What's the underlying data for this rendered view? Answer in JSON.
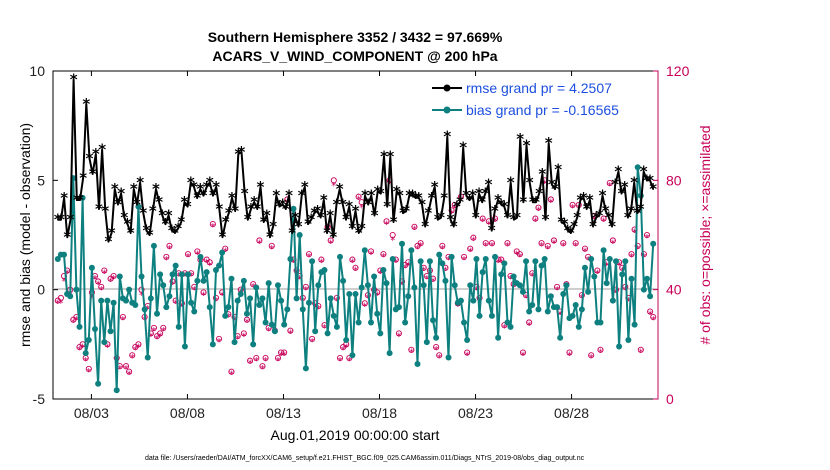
{
  "chart_data": {
    "type": "line",
    "title": "Southern Hemisphere 3352 / 3432 = 97.669%",
    "subtitle": "ACARS_V_WIND_COMPONENT @ 200 hPa",
    "xlabel": "Aug.01,2019 00:00:00 start",
    "ylabel": "rmse and bias (model - observation)",
    "ylabel_right": "# of obs: o=possible; ×=assimilated",
    "ylim": [
      -5,
      10
    ],
    "ylim_right": [
      0,
      120
    ],
    "xlim": [
      0,
      31.5
    ],
    "x_ticks": [
      {
        "x": 2,
        "label": "08/03"
      },
      {
        "x": 7,
        "label": "08/08"
      },
      {
        "x": 12,
        "label": "08/13"
      },
      {
        "x": 17,
        "label": "08/18"
      },
      {
        "x": 22,
        "label": "08/23"
      },
      {
        "x": 27,
        "label": "08/28"
      }
    ],
    "y_ticks": [
      -5,
      0,
      5,
      10
    ],
    "y_ticks_right": [
      0,
      40,
      80,
      120
    ],
    "footnote": "data file: /Users/raeder/DAI/ATM_forcXX/CAM6_setup/f.e21.FHIST_BGC.f09_025.CAM6assim.011/Diags_NTrS_2019-08/obs_diag_output.nc",
    "colors": {
      "rmse": "#000000",
      "bias": "#0f8080",
      "obs": "#c8005a",
      "legend_text": "#1d4fe0"
    },
    "series": [
      {
        "name": "rmse grand pr = 4.2507",
        "values": [
          3.2,
          3.2,
          4.2,
          2.4,
          3.2,
          9.6,
          4.1,
          4.1,
          5.1,
          8.5,
          6.0,
          5.3,
          6.2,
          3.7,
          6.4,
          3.6,
          2.2,
          2.6,
          4.6,
          3.9,
          4.4,
          3.3,
          3.0,
          2.6,
          4.6,
          3.9,
          4.9,
          3.5,
          2.7,
          2.5,
          3.6,
          4.6,
          4.0,
          3.4,
          3.0,
          3.4,
          2.7,
          2.6,
          2.8,
          3.1,
          4.0,
          3.8,
          4.9,
          4.7,
          4.2,
          4.6,
          4.3,
          4.7,
          4.9,
          4.3,
          4.7,
          3.7,
          2.4,
          3.1,
          3.5,
          4.2,
          3.6,
          6.2,
          6.3,
          4.4,
          3.2,
          3.7,
          4.0,
          3.7,
          4.7,
          3.1,
          3.4,
          2.4,
          2.9,
          4.3,
          3.8,
          3.9,
          3.7,
          4.3,
          2.6,
          3.3,
          2.9,
          4.3,
          4.7,
          3.0,
          3.2,
          3.5,
          3.6,
          3.3,
          4.1,
          2.6,
          3.4,
          2.4,
          3.9,
          4.6,
          3.9,
          3.2,
          3.8,
          2.8,
          3.6,
          2.6,
          2.8,
          4.3,
          3.9,
          4.3,
          3.4,
          4.5,
          4.4,
          6.1,
          3.8,
          6.1,
          3.1,
          4.5,
          4.3,
          3.5,
          3.6,
          4.3,
          4.3,
          4.2,
          4.2,
          3.9,
          2.9,
          3.5,
          4.2,
          4.7,
          3.2,
          3.3,
          4.2,
          7.0,
          3.2,
          2.9,
          3.8,
          4.0,
          6.5,
          4.3,
          4.1,
          4.3,
          3.3,
          4.4,
          4.0,
          4.4,
          4.8,
          2.7,
          3.6,
          4.1,
          3.9,
          3.8,
          3.3,
          4.9,
          3.2,
          3.3,
          6.9,
          4.0,
          6.6,
          4.9,
          4.0,
          4.0,
          4.4,
          5.3,
          3.2,
          6.7,
          4.8,
          4.6,
          5.5,
          3.1,
          3.0,
          2.7,
          2.6,
          2.9,
          3.3,
          4.1,
          4.2,
          3.7,
          4.1,
          2.9,
          3.3,
          3.4,
          4.3,
          3.6,
          3.3,
          2.9,
          4.8,
          5.4,
          4.4,
          4.7,
          3.3,
          3.6,
          4.9,
          3.5,
          3.7,
          5.4,
          5.0,
          5.0,
          4.6
        ]
      },
      {
        "name": "bias grand pr = -0.16565",
        "values": [
          1.4,
          1.6,
          1.6,
          -0.2,
          -0.3,
          5.1,
          0.0,
          -1.7,
          4.2,
          -2.9,
          -2.3,
          1.0,
          -1.8,
          -4.3,
          -0.5,
          -2.4,
          -0.5,
          -1.9,
          -0.6,
          -4.6,
          0.6,
          -0.4,
          -0.5,
          0.0,
          -0.6,
          -0.7,
          3.8,
          0.6,
          -0.9,
          -3.1,
          -0.4,
          2.0,
          -1.1,
          0.7,
          0.2,
          -0.8,
          -0.3,
          0.7,
          1.1,
          -1.7,
          0.7,
          -2.6,
          0.7,
          -0.6,
          -1.0,
          0.4,
          1.5,
          0.4,
          0.8,
          -0.8,
          -2.5,
          0.9,
          1.1,
          1.7,
          -1.2,
          -0.8,
          0.5,
          -2.4,
          -0.5,
          -0.2,
          0.4,
          -1.1,
          -0.4,
          -2.5,
          0.1,
          -0.7,
          -0.4,
          -1.5,
          0.3,
          -1.6,
          -1.9,
          0.2,
          -0.5,
          -1.6,
          -0.9,
          1.4,
          3.7,
          -0.4,
          2.5,
          -0.9,
          -3.6,
          -0.6,
          1.3,
          -1.9,
          0.2,
          0.8,
          0.9,
          -2.0,
          -0.4,
          -1.2,
          -1.7,
          1.5,
          0.4,
          -2.3,
          -0.2,
          -3.0,
          -0.2,
          -1.5,
          0.1,
          1.8,
          0.2,
          -1.5,
          0.6,
          -1.1,
          -2.0,
          0.9,
          0.3,
          -2.9,
          1.4,
          -0.9,
          -0.8,
          2.1,
          -1.5,
          -0.3,
          1.8,
          0.1,
          -3.4,
          1.3,
          0.2,
          -2.4,
          1.3,
          -1.4,
          -2.2,
          1.6,
          1.2,
          0.4,
          -3.1,
          1.5,
          0.2,
          -0.6,
          -0.5,
          -1.5,
          -2.3,
          0.2,
          -0.5,
          1.4,
          -1.2,
          0.8,
          1.4,
          -0.5,
          -1.2,
          1.5,
          -2.2,
          0.7,
          1.2,
          -1.5,
          -1.7,
          0.6,
          0.3,
          0.2,
          -0.1,
          1.3,
          -1.0,
          -0.7,
          1.3,
          -0.9,
          1.1,
          1.4,
          -1.0,
          -0.3,
          -0.8,
          -0.8,
          -2.2,
          -0.2,
          0.2,
          -1.3,
          -1.2,
          -0.7,
          -1.7,
          -0.9,
          1.0,
          -0.1,
          1.4,
          0.6,
          -1.5,
          -1.5,
          1.8,
          0.3,
          1.4,
          -0.5,
          1.3,
          -2.6,
          0.7,
          1.3,
          -2.3,
          0.5,
          -1.6,
          5.6,
          4.3,
          0.0,
          0.5,
          -0.3,
          2.1
        ]
      }
    ],
    "obs_possible": [
      36,
      37,
      45,
      47,
      40,
      29,
      30,
      19,
      20,
      15,
      11,
      39,
      45,
      43,
      41,
      47,
      20,
      44,
      45,
      15,
      12,
      30,
      12,
      10,
      16,
      19,
      20,
      40,
      30,
      34,
      24,
      26,
      23,
      24,
      26,
      52,
      56,
      43,
      36,
      46,
      35,
      46,
      53,
      46,
      41,
      54,
      51,
      39,
      51,
      50,
      64,
      37,
      22,
      39,
      55,
      31,
      10,
      30,
      23,
      40,
      24,
      29,
      14,
      42,
      15,
      58,
      12,
      15,
      26,
      56,
      25,
      15,
      17,
      17,
      73,
      25,
      51,
      47,
      45,
      37,
      41,
      53,
      22,
      35,
      34,
      51,
      27,
      63,
      58,
      80,
      37,
      15,
      19,
      20,
      15,
      51,
      48,
      74,
      72,
      35,
      38,
      54,
      40,
      39,
      47,
      53,
      65,
      80,
      60,
      51,
      24,
      43,
      49,
      50,
      18,
      63,
      56,
      57,
      48,
      45,
      47,
      44,
      19,
      16,
      56,
      48,
      52,
      69,
      71,
      35,
      74,
      52,
      17,
      55,
      59,
      41,
      37,
      66,
      57,
      65,
      57,
      66,
      51,
      51,
      27,
      57,
      45,
      42,
      54,
      53,
      17,
      38,
      28,
      46,
      66,
      70,
      57,
      80,
      56,
      73,
      58,
      41,
      32,
      57,
      42,
      17,
      71,
      57,
      71,
      38,
      55,
      52,
      16,
      67,
      47,
      18,
      66,
      50,
      79,
      58,
      40,
      50,
      48,
      41,
      37,
      53,
      62,
      56,
      18,
      53,
      60,
      32,
      30
    ],
    "obs_assimilated": [
      35,
      35,
      43,
      46,
      38,
      28,
      29,
      18,
      19,
      14,
      10,
      37,
      44,
      42,
      40,
      46,
      19,
      43,
      44,
      14,
      11,
      29,
      11,
      9,
      15,
      18,
      19,
      38,
      29,
      33,
      23,
      25,
      22,
      23,
      25,
      51,
      55,
      42,
      35,
      45,
      34,
      45,
      52,
      45,
      40,
      53,
      50,
      38,
      50,
      49,
      63,
      36,
      21,
      38,
      54,
      30,
      9,
      29,
      22,
      39,
      23,
      28,
      13,
      41,
      14,
      57,
      11,
      14,
      25,
      55,
      24,
      14,
      16,
      16,
      72,
      24,
      50,
      46,
      44,
      36,
      40,
      52,
      21,
      34,
      33,
      50,
      26,
      62,
      57,
      78,
      36,
      14,
      18,
      19,
      14,
      50,
      47,
      73,
      70,
      34,
      37,
      53,
      39,
      38,
      46,
      52,
      64,
      79,
      58,
      50,
      23,
      42,
      48,
      49,
      17,
      62,
      55,
      56,
      47,
      44,
      46,
      43,
      18,
      15,
      55,
      47,
      51,
      68,
      70,
      34,
      73,
      51,
      16,
      54,
      58,
      40,
      36,
      65,
      56,
      64,
      56,
      65,
      50,
      50,
      26,
      56,
      44,
      41,
      53,
      52,
      16,
      37,
      27,
      45,
      65,
      69,
      56,
      79,
      55,
      72,
      57,
      40,
      31,
      56,
      41,
      16,
      70,
      56,
      70,
      37,
      54,
      51,
      15,
      66,
      46,
      17,
      65,
      49,
      78,
      57,
      39,
      49,
      47,
      40,
      36,
      52,
      61,
      55,
      17,
      52,
      59,
      31,
      29
    ]
  }
}
